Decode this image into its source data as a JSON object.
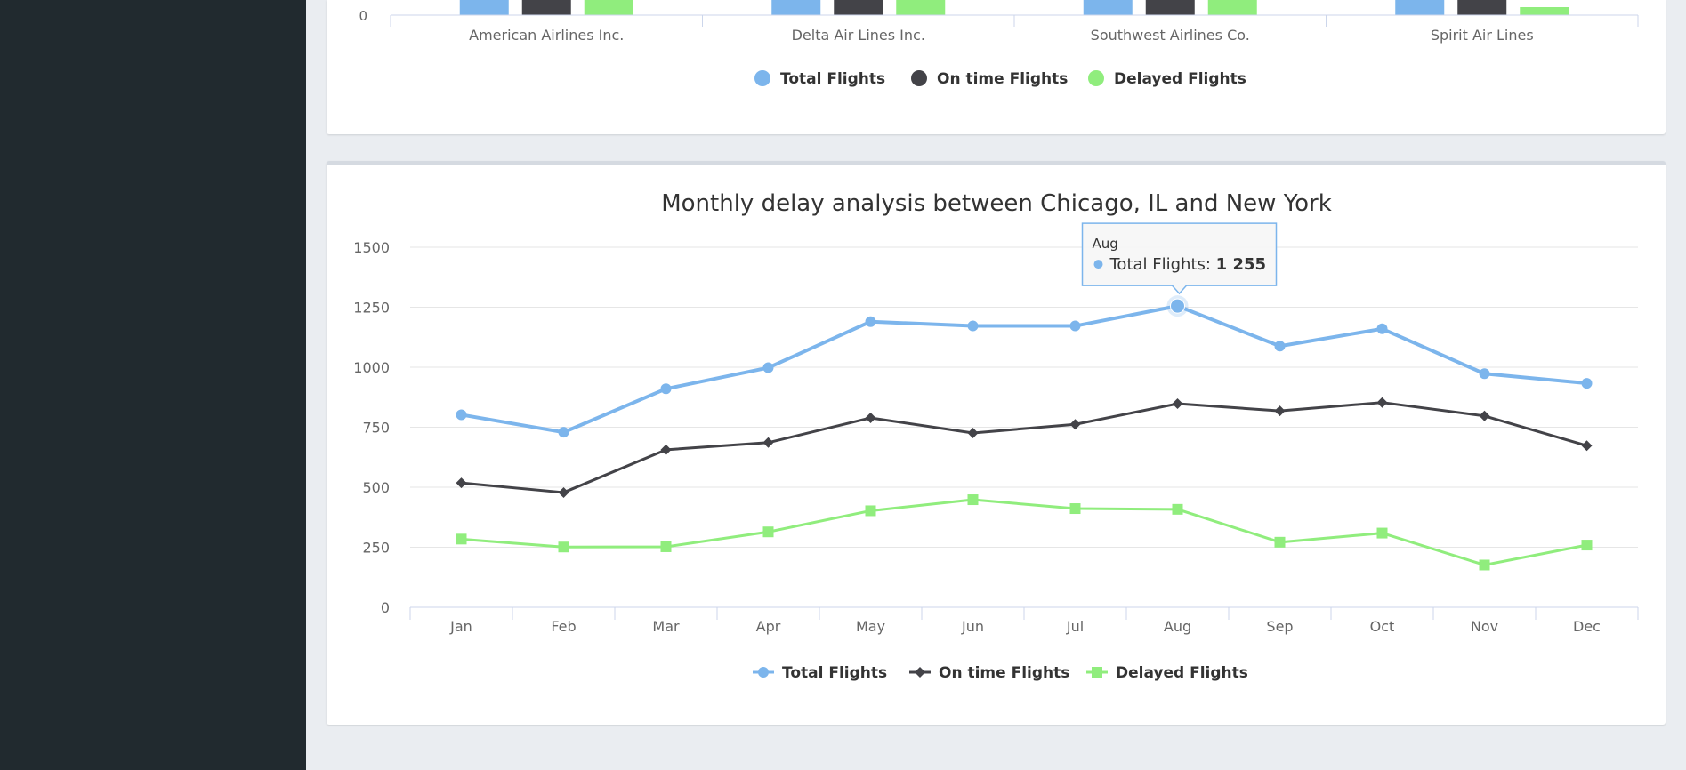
{
  "colors": {
    "total": "#7cb5ec",
    "ontime": "#434348",
    "delayed": "#90ed7d",
    "axis": "#ccd6eb",
    "grid": "#e6e6e6",
    "label": "#666666",
    "sidebar": "#212a2f"
  },
  "top_chart": {
    "type": "bar",
    "visible_tick": "0",
    "categories": [
      "American Airlines Inc.",
      "Delta Air Lines Inc.",
      "Southwest Airlines Co.",
      "Spirit Air Lines"
    ],
    "legend": [
      "Total Flights",
      "On time Flights",
      "Delayed Flights"
    ]
  },
  "chart_data": {
    "type": "line",
    "title": "Monthly delay analysis between Chicago, IL and New York",
    "categories": [
      "Jan",
      "Feb",
      "Mar",
      "Apr",
      "May",
      "Jun",
      "Jul",
      "Aug",
      "Sep",
      "Oct",
      "Nov",
      "Dec"
    ],
    "ylim": [
      0,
      1500
    ],
    "yticks": [
      "0",
      "250",
      "500",
      "750",
      "1000",
      "1250",
      "1500"
    ],
    "series": [
      {
        "name": "Total Flights",
        "marker": "circle",
        "values": [
          802,
          729,
          910,
          998,
          1190,
          1172,
          1172,
          1255,
          1088,
          1160,
          973,
          933
        ]
      },
      {
        "name": "On time Flights",
        "marker": "diamond",
        "values": [
          518,
          478,
          656,
          686,
          789,
          726,
          762,
          848,
          818,
          853,
          797,
          673
        ]
      },
      {
        "name": "Delayed Flights",
        "marker": "square",
        "values": [
          284,
          251,
          252,
          314,
          402,
          448,
          411,
          408,
          271,
          309,
          176,
          259
        ]
      }
    ],
    "tooltip": {
      "category": "Aug",
      "series": "Total Flights",
      "label": "Total Flights: ",
      "value": "1 255"
    }
  }
}
